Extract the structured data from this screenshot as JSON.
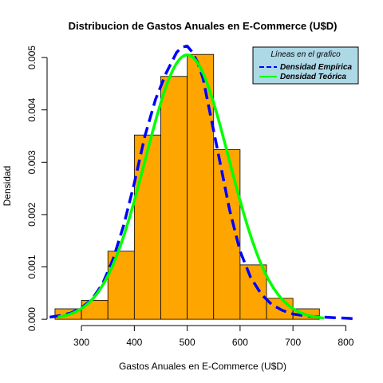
{
  "chart_data": {
    "type": "histogram",
    "title": "Distribucion de Gastos Anuales en E-Commerce (U$D)",
    "xlabel": "Gastos Anuales en E-Commerce (U$D)",
    "ylabel": "Densidad",
    "xlim": [
      235,
      825
    ],
    "ylim": [
      -0.00012,
      0.0052
    ],
    "x_ticks": [
      300,
      400,
      500,
      600,
      700,
      800
    ],
    "y_ticks": [
      0.0,
      0.001,
      0.002,
      0.003,
      0.004,
      0.005
    ],
    "y_tick_labels": [
      "0.000",
      "0.001",
      "0.002",
      "0.003",
      "0.004",
      "0.005"
    ],
    "bar_color": "#FFA500",
    "bins": [
      {
        "start": 250,
        "end": 300,
        "density": 0.0002
      },
      {
        "start": 300,
        "end": 350,
        "density": 0.00036
      },
      {
        "start": 350,
        "end": 400,
        "density": 0.0013
      },
      {
        "start": 400,
        "end": 450,
        "density": 0.00352
      },
      {
        "start": 450,
        "end": 500,
        "density": 0.00464
      },
      {
        "start": 500,
        "end": 550,
        "density": 0.00506
      },
      {
        "start": 550,
        "end": 600,
        "density": 0.00324
      },
      {
        "start": 600,
        "end": 650,
        "density": 0.00104
      },
      {
        "start": 650,
        "end": 700,
        "density": 0.0004
      },
      {
        "start": 700,
        "end": 750,
        "density": 0.0002
      }
    ],
    "series": [
      {
        "name": "Densidad Empírica",
        "style": "dashed",
        "color": "#0000FF",
        "x": [
          240,
          260,
          280,
          300,
          320,
          340,
          360,
          380,
          400,
          420,
          440,
          460,
          470,
          480,
          490,
          500,
          510,
          520,
          530,
          540,
          550,
          560,
          580,
          600,
          620,
          640,
          660,
          680,
          700,
          720,
          740,
          760,
          780,
          800,
          820
        ],
        "y": [
          4e-05,
          7e-05,
          0.00012,
          0.00022,
          0.00038,
          0.00068,
          0.00115,
          0.0018,
          0.0026,
          0.0035,
          0.0042,
          0.0047,
          0.0049,
          0.0051,
          0.0052,
          0.00522,
          0.0051,
          0.0049,
          0.0046,
          0.0041,
          0.0036,
          0.0031,
          0.0021,
          0.0013,
          0.0008,
          0.00048,
          0.00028,
          0.00017,
          0.0001,
          7e-05,
          5e-05,
          4e-05,
          3e-05,
          2e-05,
          1e-05
        ]
      },
      {
        "name": "Densidad Teórica",
        "style": "solid",
        "color": "#00FF00",
        "mean": 500,
        "sd": 79,
        "x_range": [
          255,
          760
        ]
      }
    ],
    "legend": {
      "title": "Líneas en el grafico",
      "position": "top-right",
      "background": "#ADD8E6"
    }
  }
}
